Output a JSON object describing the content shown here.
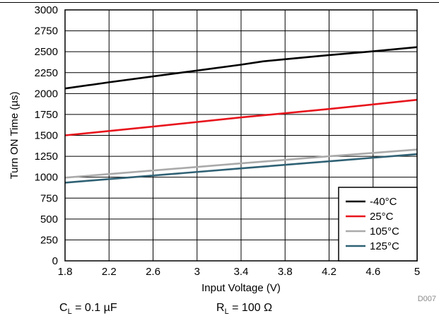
{
  "chart_data": {
    "type": "line",
    "xlabel": "Input Voltage (V)",
    "ylabel": "Turn ON Time (µs)",
    "xlim": [
      1.8,
      5
    ],
    "ylim": [
      0,
      3000
    ],
    "x_ticks": [
      "1.8",
      "2.2",
      "2.6",
      "3",
      "3.4",
      "3.8",
      "4.2",
      "4.6",
      "5"
    ],
    "y_ticks": [
      "0",
      "250",
      "500",
      "750",
      "1000",
      "1250",
      "1500",
      "1750",
      "2000",
      "2250",
      "2500",
      "2750",
      "3000"
    ],
    "grid": true,
    "legend_position": "bottom-right",
    "series": [
      {
        "name": "-40°C",
        "color": "#000000",
        "x": [
          1.8,
          2.2,
          2.6,
          3.0,
          3.4,
          3.6,
          3.8,
          4.2,
          4.6,
          5.0
        ],
        "y": [
          2060,
          2135,
          2205,
          2275,
          2345,
          2385,
          2410,
          2460,
          2505,
          2555
        ]
      },
      {
        "name": "25°C",
        "color": "#e8141c",
        "x": [
          1.8,
          2.6,
          3.4,
          4.2,
          5.0
        ],
        "y": [
          1500,
          1605,
          1715,
          1815,
          1925
        ]
      },
      {
        "name": "105°C",
        "color": "#aaaaaa",
        "x": [
          1.8,
          2.6,
          3.4,
          4.2,
          5.0
        ],
        "y": [
          995,
          1080,
          1165,
          1250,
          1330
        ]
      },
      {
        "name": "125°C",
        "color": "#2f6174",
        "x": [
          1.8,
          2.6,
          3.4,
          4.2,
          5.0
        ],
        "y": [
          935,
          1020,
          1105,
          1190,
          1275
        ]
      }
    ],
    "code": "D007"
  },
  "conditions": {
    "cl_label": "C",
    "cl_sub": "L",
    "cl_value": " = 0.1 µF",
    "rl_label": "R",
    "rl_sub": "L",
    "rl_value": " = 100 Ω"
  }
}
